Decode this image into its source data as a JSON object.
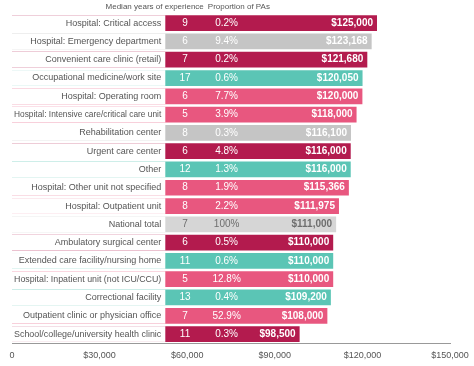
{
  "chart_data": {
    "type": "bar",
    "orientation": "horizontal",
    "categories": [
      "Hospital: Critical access",
      "Hospital: Emergency department",
      "Convenient care clinic (retail)",
      "Occupational medicine/work site",
      "Hospital: Operating room",
      "Hospital: Intensive care/critical care unit",
      "Rehabilitation center",
      "Urgent care center",
      "Other",
      "Hospital: Other unit not specified",
      "Hospital: Outpatient unit",
      "National total",
      "Ambulatory surgical center",
      "Extended care facility/nursing home",
      "Hospital: Inpatient unit (not ICU/CCU)",
      "Correctional facility",
      "Outpatient clinic or physician office",
      "School/college/university health clinic"
    ],
    "values": [
      125000,
      123168,
      121680,
      120050,
      120000,
      118000,
      116100,
      116000,
      116000,
      115366,
      111975,
      111000,
      110000,
      110000,
      110000,
      109200,
      108000,
      98500
    ],
    "value_labels": [
      "$125,000",
      "$123,168",
      "$121,680",
      "$120,050",
      "$120,000",
      "$118,000",
      "$116,100",
      "$116,000",
      "$116,000",
      "$115,366",
      "$111,975",
      "$111,000",
      "$110,000",
      "$110,000",
      "$110,000",
      "$109,200",
      "$108,000",
      "$98,500"
    ],
    "colors": [
      "#b31b4e",
      "#c5c5c5",
      "#b31b4e",
      "#5bc5b5",
      "#e8577f",
      "#e8577f",
      "#c5c5c5",
      "#b31b4e",
      "#5bc5b5",
      "#e8577f",
      "#e8577f",
      "#d6d6d6",
      "#b31b4e",
      "#5bc5b5",
      "#e8577f",
      "#5bc5b5",
      "#e8577f",
      "#b31b4e"
    ],
    "data_labels": true,
    "grid": false,
    "xlim": [
      0,
      150000
    ],
    "xticks": [
      0,
      {
        "value": 30000,
        "label": "$30,000"
      },
      {
        "value": 60000,
        "label": "$60,000"
      },
      {
        "value": 90000,
        "label": "$90,000"
      },
      {
        "value": 120000,
        "label": "$120,000"
      },
      {
        "value": 150000,
        "label": "$150,000"
      }
    ],
    "columns": [
      {
        "title": "Median years of experience",
        "values": [
          9,
          6,
          7,
          17,
          6,
          5,
          8,
          6,
          12,
          8,
          8,
          7,
          6,
          11,
          5,
          13,
          7,
          11
        ]
      },
      {
        "title": "Proportion of PAs",
        "values": [
          0.2,
          9.4,
          0.2,
          0.6,
          7.7,
          3.9,
          0.3,
          4.8,
          1.3,
          1.9,
          2.2,
          100,
          0.5,
          0.6,
          12.8,
          0.4,
          52.9,
          0.3
        ],
        "value_labels": [
          "0.2%",
          "9.4%",
          "0.2%",
          "0.6%",
          "7.7%",
          "3.9%",
          "0.3%",
          "4.8%",
          "1.3%",
          "1.9%",
          "2.2%",
          "100%",
          "0.5%",
          "0.6%",
          "12.8%",
          "0.4%",
          "52.9%",
          "0.3%"
        ]
      }
    ]
  }
}
